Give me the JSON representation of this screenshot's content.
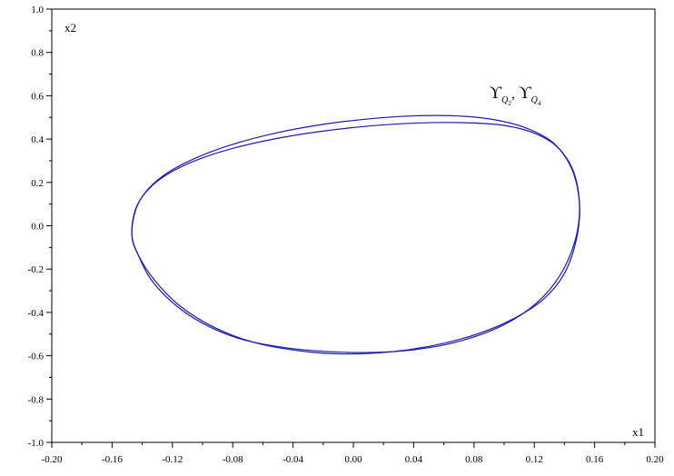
{
  "chart_data": {
    "type": "line",
    "title": "",
    "xlabel": "x1",
    "ylabel": "x2",
    "xlim": [
      -0.2,
      0.2
    ],
    "ylim": [
      -1.0,
      1.0
    ],
    "grid": false,
    "line_color": "#1c1ca8",
    "xticks": [
      "-0.20",
      "-0.16",
      "-0.12",
      "-0.08",
      "-0.04",
      "0.00",
      "0.04",
      "0.08",
      "0.12",
      "0.16",
      "0.20"
    ],
    "yticks": [
      "-1.0",
      "-0.8",
      "-0.6",
      "-0.4",
      "-0.2",
      "0.0",
      "0.2",
      "0.4",
      "0.6",
      "0.8",
      "1.0"
    ],
    "annotation": {
      "symbol": "ϒ",
      "sub1": "Q",
      "sub1_index": "2",
      "separator": ", ",
      "sub2": "Q",
      "sub2_index": "4",
      "x": 0.09,
      "y": 0.59
    },
    "series": [
      {
        "values_x": [
          -0.1469,
          -0.144,
          -0.136,
          -0.122,
          -0.102,
          -0.078,
          -0.05,
          -0.02,
          0.01,
          0.04,
          0.068,
          0.093,
          0.115,
          0.133,
          0.145,
          0.15,
          0.148,
          0.14,
          0.126,
          0.106,
          0.082,
          0.055,
          0.025,
          -0.005,
          -0.035,
          -0.065,
          -0.092,
          -0.115,
          -0.132,
          -0.143,
          -0.1469
        ],
        "values_y": [
          -0.04,
          0.08,
          0.17,
          0.25,
          0.32,
          0.38,
          0.43,
          0.468,
          0.493,
          0.507,
          0.507,
          0.49,
          0.45,
          0.38,
          0.26,
          0.1,
          -0.06,
          -0.22,
          -0.34,
          -0.43,
          -0.5,
          -0.55,
          -0.582,
          -0.592,
          -0.578,
          -0.54,
          -0.47,
          -0.37,
          -0.25,
          -0.13,
          -0.04
        ]
      },
      {
        "values_x": [
          -0.1469,
          -0.1445,
          -0.137,
          -0.124,
          -0.105,
          -0.081,
          -0.053,
          -0.022,
          0.01,
          0.042,
          0.072,
          0.098,
          0.119,
          0.135,
          0.146,
          0.15,
          0.147,
          0.137,
          0.121,
          0.099,
          0.072,
          0.043,
          0.012,
          -0.019,
          -0.048,
          -0.076,
          -0.1,
          -0.119,
          -0.134,
          -0.143,
          -0.1469
        ],
        "values_y": [
          -0.04,
          0.075,
          0.16,
          0.235,
          0.3,
          0.355,
          0.4,
          0.435,
          0.46,
          0.474,
          0.476,
          0.465,
          0.43,
          0.365,
          0.25,
          0.09,
          -0.07,
          -0.23,
          -0.36,
          -0.46,
          -0.53,
          -0.57,
          -0.585,
          -0.58,
          -0.56,
          -0.52,
          -0.45,
          -0.36,
          -0.25,
          -0.13,
          -0.04
        ]
      }
    ]
  }
}
